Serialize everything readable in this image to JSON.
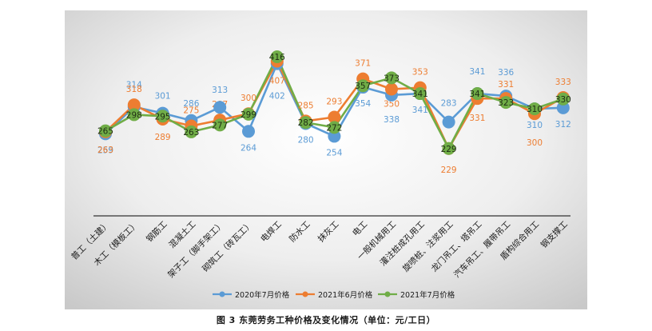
{
  "caption": "图 3   东莞劳务工种价格及变化情况（单位：元/工日）",
  "chart_data": {
    "type": "line",
    "categories": [
      "普工（土建）",
      "木工（模板工）",
      "钢筋工",
      "混凝土工",
      "架子工（脚手架工）",
      "砌筑工（砖瓦工）",
      "电焊工",
      "防水工",
      "抹灰工",
      "电工",
      "一般机械用工",
      "灌注桩成孔用工",
      "旋喷桩、注浆用工",
      "龙门吊工、塔吊工",
      "汽车吊工、履带吊工",
      "盾构综合用工",
      "钢支撑工"
    ],
    "series": [
      {
        "name": "2020年7月价格",
        "color": "#5b9bd5",
        "values": [
          259,
          314,
          301,
          286,
          313,
          264,
          402,
          280,
          254,
          354,
          338,
          341,
          283,
          341,
          336,
          310,
          312
        ]
      },
      {
        "name": "2021年6月价格",
        "color": "#ed7d31",
        "values": [
          263,
          318,
          289,
          275,
          287,
          300,
          407,
          285,
          293,
          371,
          350,
          353,
          229,
          331,
          331,
          300,
          333
        ]
      },
      {
        "name": "2021年7月价格",
        "color": "#70ad47",
        "values": [
          265,
          298,
          295,
          263,
          277,
          299,
          416,
          282,
          272,
          357,
          373,
          341,
          229,
          341,
          323,
          310,
          330
        ]
      }
    ],
    "ylim": [
      200,
      450
    ],
    "grid": false,
    "legend_position": "bottom"
  }
}
